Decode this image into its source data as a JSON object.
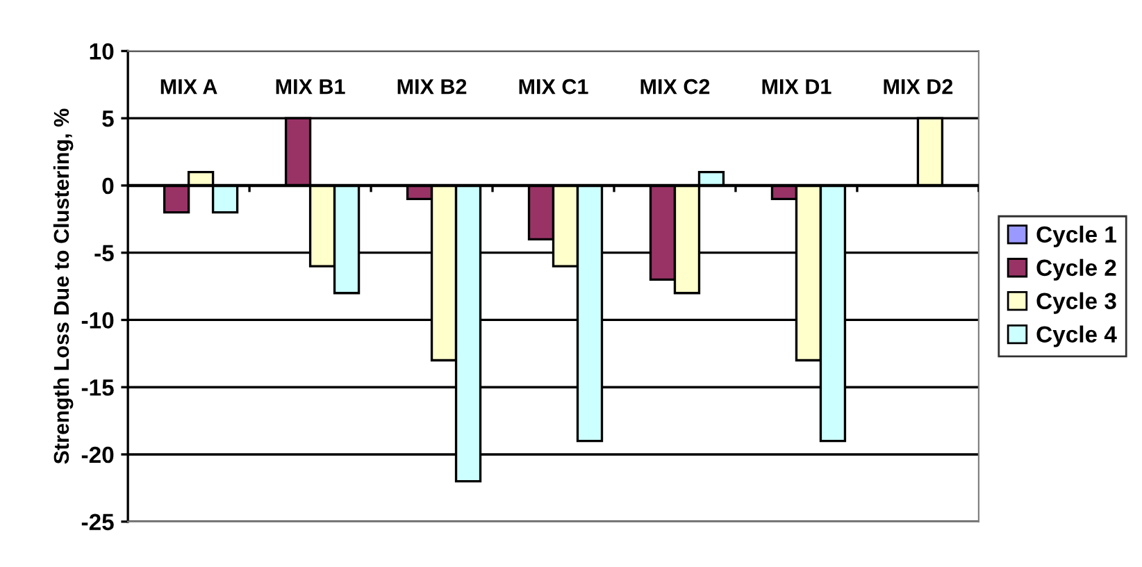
{
  "chart_data": {
    "type": "bar",
    "ylabel": "Strength Loss Due to Clustering, %",
    "categories": [
      "MIX A",
      "MIX B1",
      "MIX B2",
      "MIX C1",
      "MIX C2",
      "MIX D1",
      "MIX D2"
    ],
    "series": [
      {
        "name": "Cycle 1",
        "color": "#9999ff",
        "values": [
          null,
          null,
          null,
          null,
          null,
          null,
          null
        ]
      },
      {
        "name": "Cycle 2",
        "color": "#993366",
        "values": [
          -2,
          5,
          -1,
          -4,
          -7,
          -1,
          null
        ]
      },
      {
        "name": "Cycle 3",
        "color": "#ffffcc",
        "values": [
          1,
          -6,
          -13,
          -6,
          -8,
          -13,
          5
        ]
      },
      {
        "name": "Cycle 4",
        "color": "#ccffff",
        "values": [
          -2,
          -8,
          -22,
          -19,
          1,
          -19,
          null
        ]
      }
    ],
    "ylim": [
      -25,
      10
    ],
    "yticks": [
      -25,
      -20,
      -15,
      -10,
      -5,
      0,
      5,
      10
    ],
    "grid": "y",
    "legend": "right"
  }
}
